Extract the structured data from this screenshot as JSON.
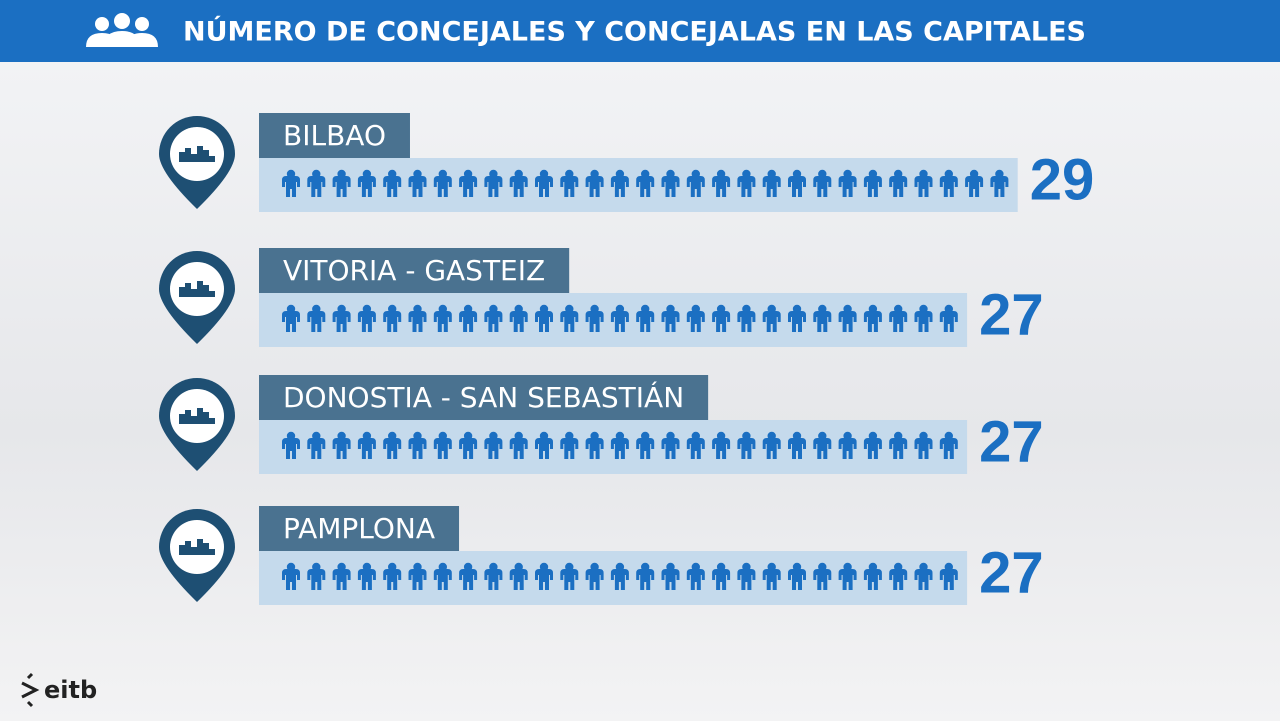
{
  "chart_data": {
    "type": "pictograph",
    "title": "NÚMERO DE CONCEJALES Y CONCEJALAS EN LAS CAPITALES",
    "categories": [
      "BILBAO",
      "VITORIA - GASTEIZ",
      "DONOSTIA - SAN SEBASTIÁN",
      "PAMPLONA"
    ],
    "values": [
      29,
      27,
      27,
      27
    ],
    "color": "#1b6fc2"
  },
  "logo": "eitb"
}
